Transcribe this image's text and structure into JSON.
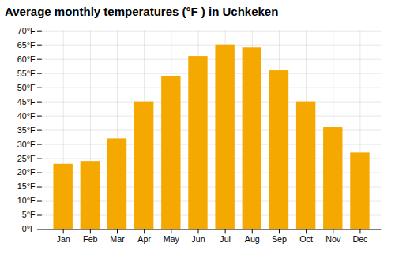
{
  "chart_data": {
    "type": "bar",
    "title": "Average monthly temperatures (°F ) in Uchkeken",
    "categories": [
      "Jan",
      "Feb",
      "Mar",
      "Apr",
      "May",
      "Jun",
      "Jul",
      "Aug",
      "Sep",
      "Oct",
      "Nov",
      "Dec"
    ],
    "values": [
      23,
      24,
      32,
      45,
      54,
      61,
      65,
      64,
      56,
      45,
      36,
      27
    ],
    "color": "#F5A800",
    "ylim": [
      0,
      70
    ],
    "yticks": [
      {
        "value": 0,
        "label": "0°F"
      },
      {
        "value": 5,
        "label": "5°F"
      },
      {
        "value": 10,
        "label": "10°F"
      },
      {
        "value": 15,
        "label": "15°F"
      },
      {
        "value": 20,
        "label": "20°F"
      },
      {
        "value": 25,
        "label": "25°F"
      },
      {
        "value": 30,
        "label": "30°F"
      },
      {
        "value": 35,
        "label": "35°F"
      },
      {
        "value": 40,
        "label": "40°F"
      },
      {
        "value": 45,
        "label": "45°F"
      },
      {
        "value": 50,
        "label": "50°F"
      },
      {
        "value": 55,
        "label": "55°F"
      },
      {
        "value": 60,
        "label": "60°F"
      },
      {
        "value": 65,
        "label": "65°F"
      },
      {
        "value": 70,
        "label": "70°F"
      }
    ],
    "grid": true
  }
}
